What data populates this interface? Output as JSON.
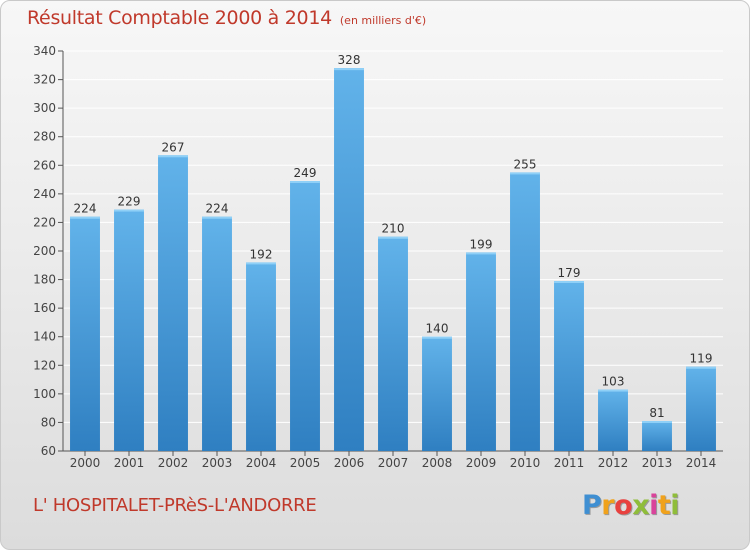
{
  "header": {
    "title": "Résultat Comptable 2000 à 2014",
    "subtitle": "(en milliers d'€)"
  },
  "footer": {
    "commune": "L' HOSPITALET-PRèS-L'ANDORRE"
  },
  "logo": {
    "text": "Proxiti",
    "parts": [
      "P",
      "r",
      "o",
      "x",
      "i",
      "t",
      "i"
    ]
  },
  "colors": {
    "bar_top": "#62b3ea",
    "bar_bottom": "#2f7fc1",
    "title": "#c0392b",
    "grid": "#ffffff",
    "axis_text": "#444444"
  },
  "chart_data": {
    "type": "bar",
    "title": "Résultat Comptable 2000 à 2014",
    "subtitle": "(en milliers d'€)",
    "xlabel": "",
    "ylabel": "",
    "categories": [
      "2000",
      "2001",
      "2002",
      "2003",
      "2004",
      "2005",
      "2006",
      "2007",
      "2008",
      "2009",
      "2010",
      "2011",
      "2012",
      "2013",
      "2014"
    ],
    "values": [
      224,
      229,
      267,
      224,
      192,
      249,
      328,
      210,
      140,
      199,
      255,
      179,
      103,
      81,
      119
    ],
    "ylim": [
      60,
      340
    ],
    "yticks": [
      "60",
      "80",
      "100",
      "120",
      "140",
      "160",
      "180",
      "200",
      "220",
      "240",
      "260",
      "280",
      "300",
      "320",
      "340"
    ],
    "grid": true,
    "data_labels": true
  }
}
